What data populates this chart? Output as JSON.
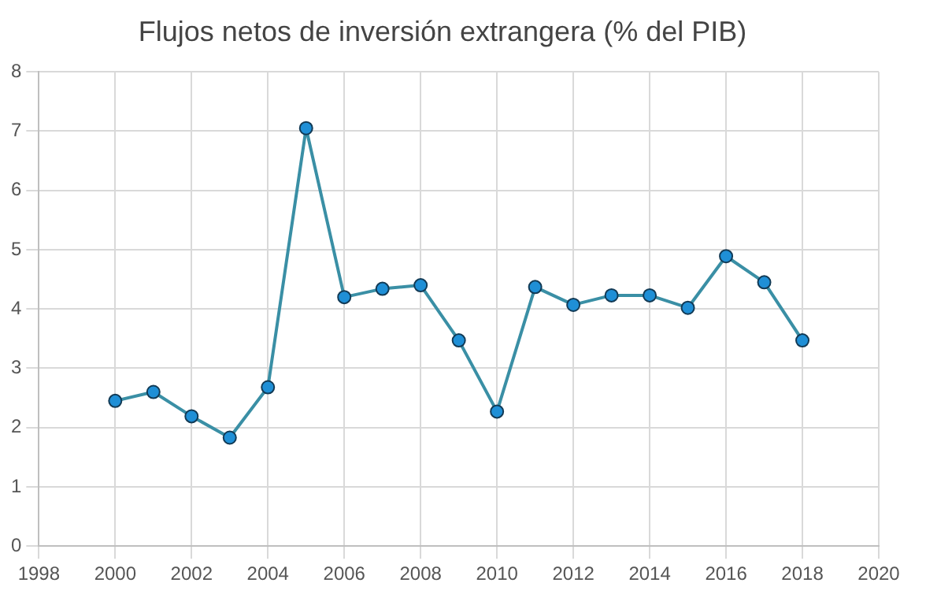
{
  "chart_data": {
    "type": "line",
    "title": "Flujos netos de inversión extrangera (% del PIB)",
    "x": [
      2000,
      2001,
      2002,
      2003,
      2004,
      2005,
      2006,
      2007,
      2008,
      2009,
      2010,
      2011,
      2012,
      2013,
      2014,
      2015,
      2016,
      2017,
      2018
    ],
    "series": [
      {
        "color": "#3a8fa5",
        "values": [
          2.45,
          2.6,
          2.19,
          1.83,
          2.68,
          7.05,
          4.2,
          4.34,
          4.4,
          3.47,
          2.27,
          4.37,
          4.07,
          4.23,
          4.23,
          4.02,
          4.89,
          4.45,
          3.47
        ]
      }
    ],
    "xlim": [
      1998,
      2020
    ],
    "xticks": [
      1998,
      2000,
      2002,
      2004,
      2006,
      2008,
      2010,
      2012,
      2014,
      2016,
      2018,
      2020
    ],
    "ylim": [
      0,
      8
    ],
    "yticks": [
      0,
      1,
      2,
      3,
      4,
      5,
      6,
      7,
      8
    ],
    "grid": true,
    "legend": false,
    "marker": "circle",
    "line_style": "solid"
  }
}
